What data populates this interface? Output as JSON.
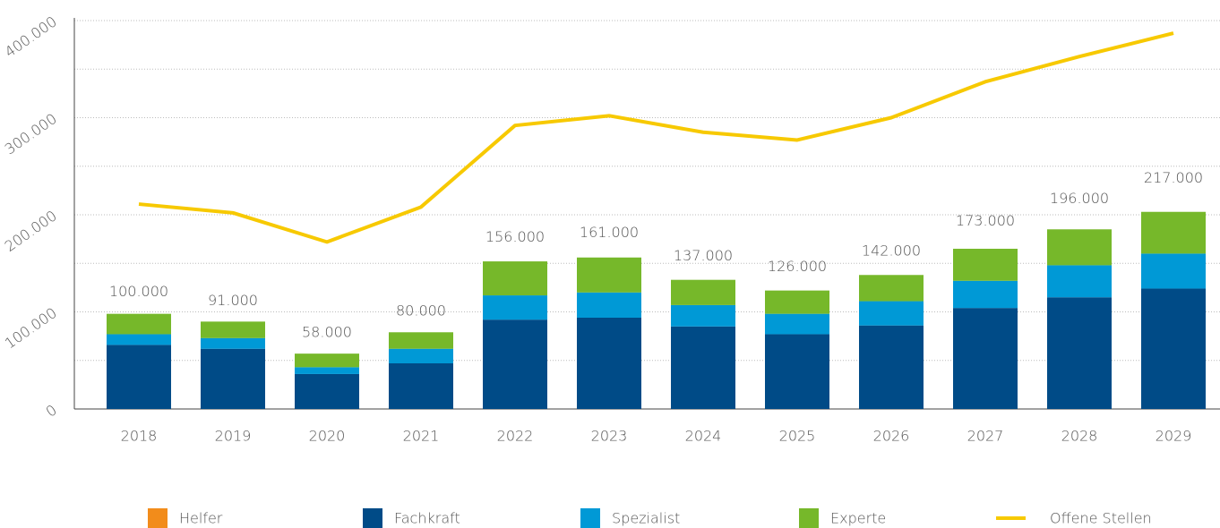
{
  "chart_data": {
    "type": "bar",
    "categories": [
      "2018",
      "2019",
      "2020",
      "2021",
      "2022",
      "2023",
      "2024",
      "2025",
      "2026",
      "2027",
      "2028",
      "2029"
    ],
    "series": [
      {
        "name": "Helfer",
        "color": "#f28c1b",
        "values": [
          2,
          1,
          1,
          1,
          4,
          5,
          4,
          4,
          4,
          8,
          11,
          14
        ]
      },
      {
        "name": "Fachkraft",
        "color": "#004b87",
        "values": [
          66000,
          62000,
          36000,
          47000,
          92000,
          94000,
          85000,
          77000,
          86000,
          104000,
          115000,
          124000
        ]
      },
      {
        "name": "Spezialist",
        "color": "#0099d6",
        "values": [
          11000,
          11000,
          7000,
          15000,
          25000,
          26000,
          22000,
          21000,
          25000,
          28000,
          33000,
          36000
        ]
      },
      {
        "name": "Experte",
        "color": "#76b82a",
        "values": [
          21000,
          17000,
          14000,
          17000,
          35000,
          36000,
          26000,
          24000,
          27000,
          33000,
          37000,
          43000
        ]
      }
    ],
    "line": {
      "name": "Offene Stellen",
      "color": "#f7c900",
      "values": [
        211000,
        202000,
        172000,
        208000,
        292000,
        302000,
        285000,
        277000,
        300000,
        337000,
        363000,
        387000
      ]
    },
    "totals": [
      100000,
      91000,
      58000,
      80000,
      156000,
      161000,
      137000,
      126000,
      142000,
      173000,
      196000,
      217000
    ],
    "total_labels": [
      "100.000",
      "91.000",
      "58.000",
      "80.000",
      "156.000",
      "161.000",
      "137.000",
      "126.000",
      "142.000",
      "173.000",
      "196.000",
      "217.000"
    ],
    "ylim": [
      0,
      400000
    ],
    "yticks": [
      0,
      {
        "value": 100000,
        "label": "100.000"
      },
      {
        "value": 200000,
        "label": "200.000"
      },
      {
        "value": 300000,
        "label": "300.000"
      },
      {
        "value": 400000,
        "label": "400.000"
      }
    ],
    "yminor": [
      50000,
      150000,
      250000,
      350000
    ],
    "grid": true,
    "legend": "bottom"
  }
}
